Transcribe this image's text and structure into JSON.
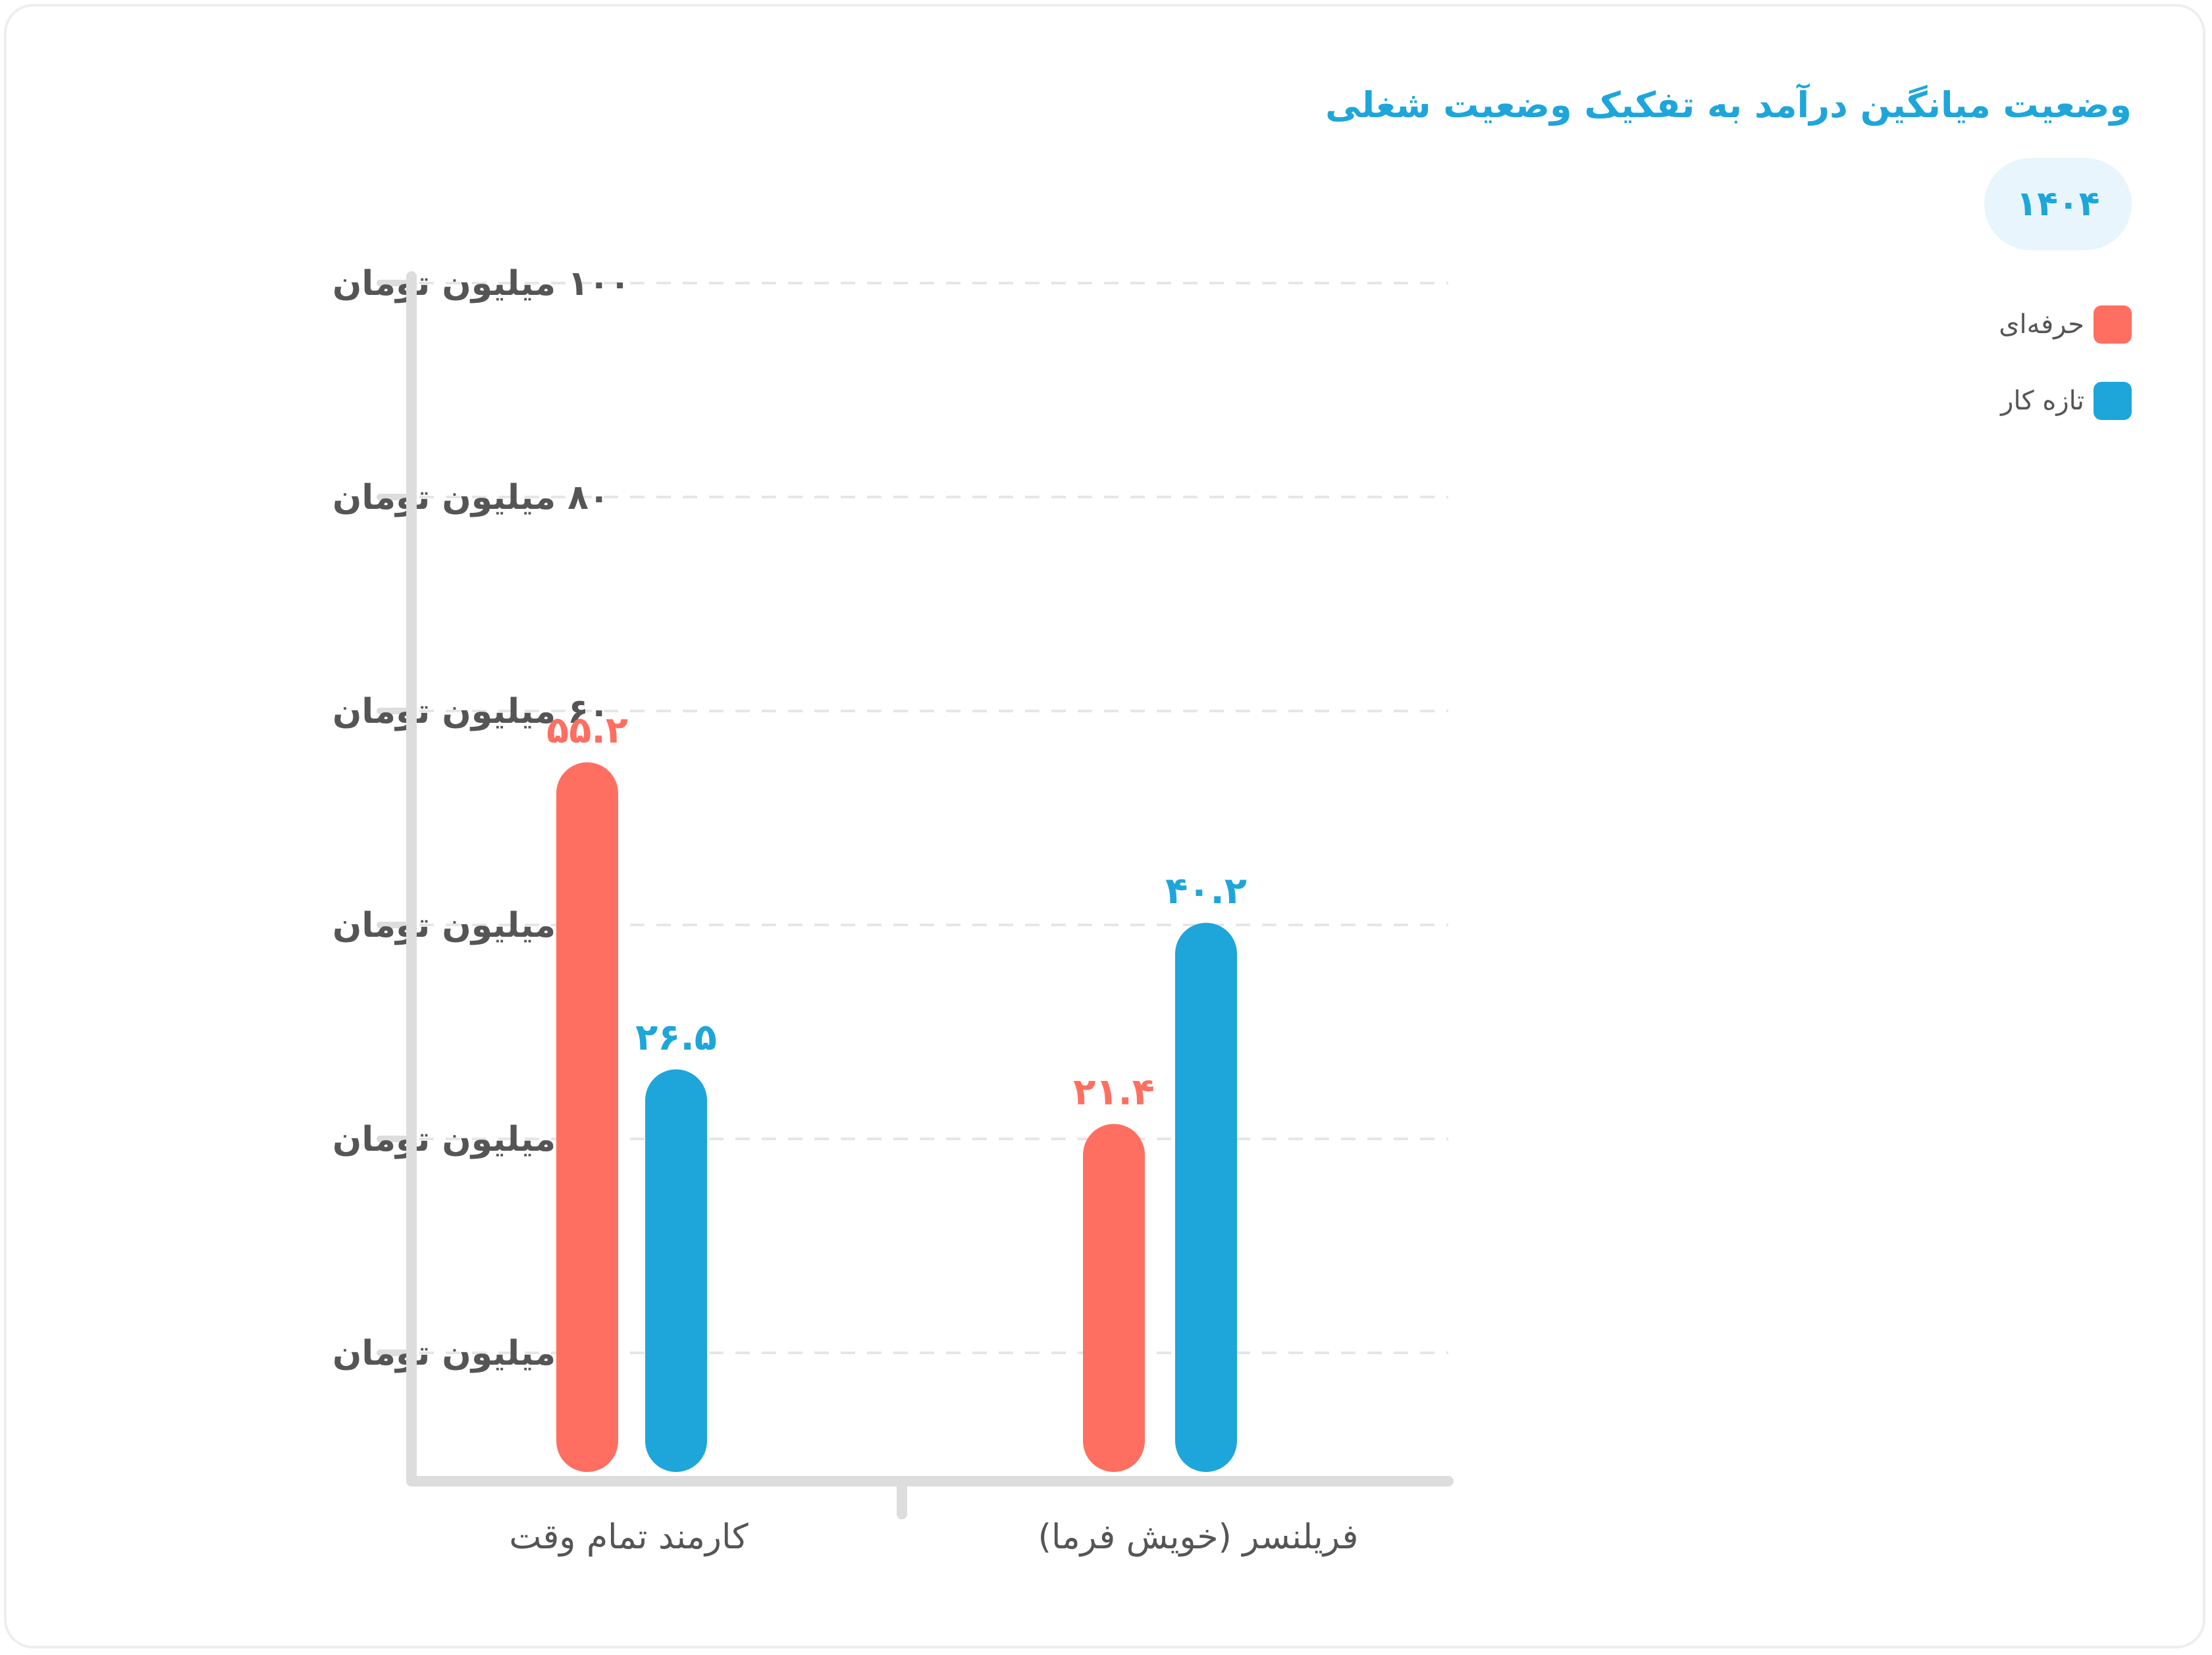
{
  "title": "وضعیت میانگین درآمد به تفکیک وضعیت شغلی",
  "year": "۱۴۰۴",
  "colors": {
    "series_pro": "#ff6f61",
    "series_new": "#1ea6da",
    "axis": "#dddddd",
    "grid": "#e6e6e6",
    "tick_text": "#555555",
    "title": "#1ea6da"
  },
  "legend": [
    {
      "label": "حرفه‌ای",
      "color": "#ff6f61"
    },
    {
      "label": "تازه کار",
      "color": "#1ea6da"
    }
  ],
  "chart_data": {
    "type": "bar",
    "title": "وضعیت میانگین درآمد به تفکیک وضعیت شغلی",
    "categories": [
      "کارمند تمام وقت",
      "فریلنسر (خویش فرما)"
    ],
    "series": [
      {
        "name": "حرفه‌ای",
        "values": [
          55.2,
          21.4
        ],
        "labels": [
          "۵۵.۲",
          "۲۱.۴"
        ],
        "color": "#ff6f61"
      },
      {
        "name": "تازه کار",
        "values": [
          26.5,
          40.2
        ],
        "labels": [
          "۲۶.۵",
          "۴۰.۲"
        ],
        "color": "#1ea6da"
      }
    ],
    "y_ticks": [
      {
        "value": 100,
        "label": "۱۰۰ میلیون تومان"
      },
      {
        "value": 80,
        "label": "۸۰ میلیون تومان"
      },
      {
        "value": 60,
        "label": "۶۰ میلیون تومان"
      },
      {
        "value": 40,
        "label": "۴۰ میلیون تومان"
      },
      {
        "value": 20,
        "label": "۲۰ میلیون تومان"
      },
      {
        "value": 5,
        "label": "۵ میلیون تومان"
      }
    ],
    "xlabel": "",
    "ylabel": "",
    "grid": true,
    "legend_position": "top-right"
  }
}
